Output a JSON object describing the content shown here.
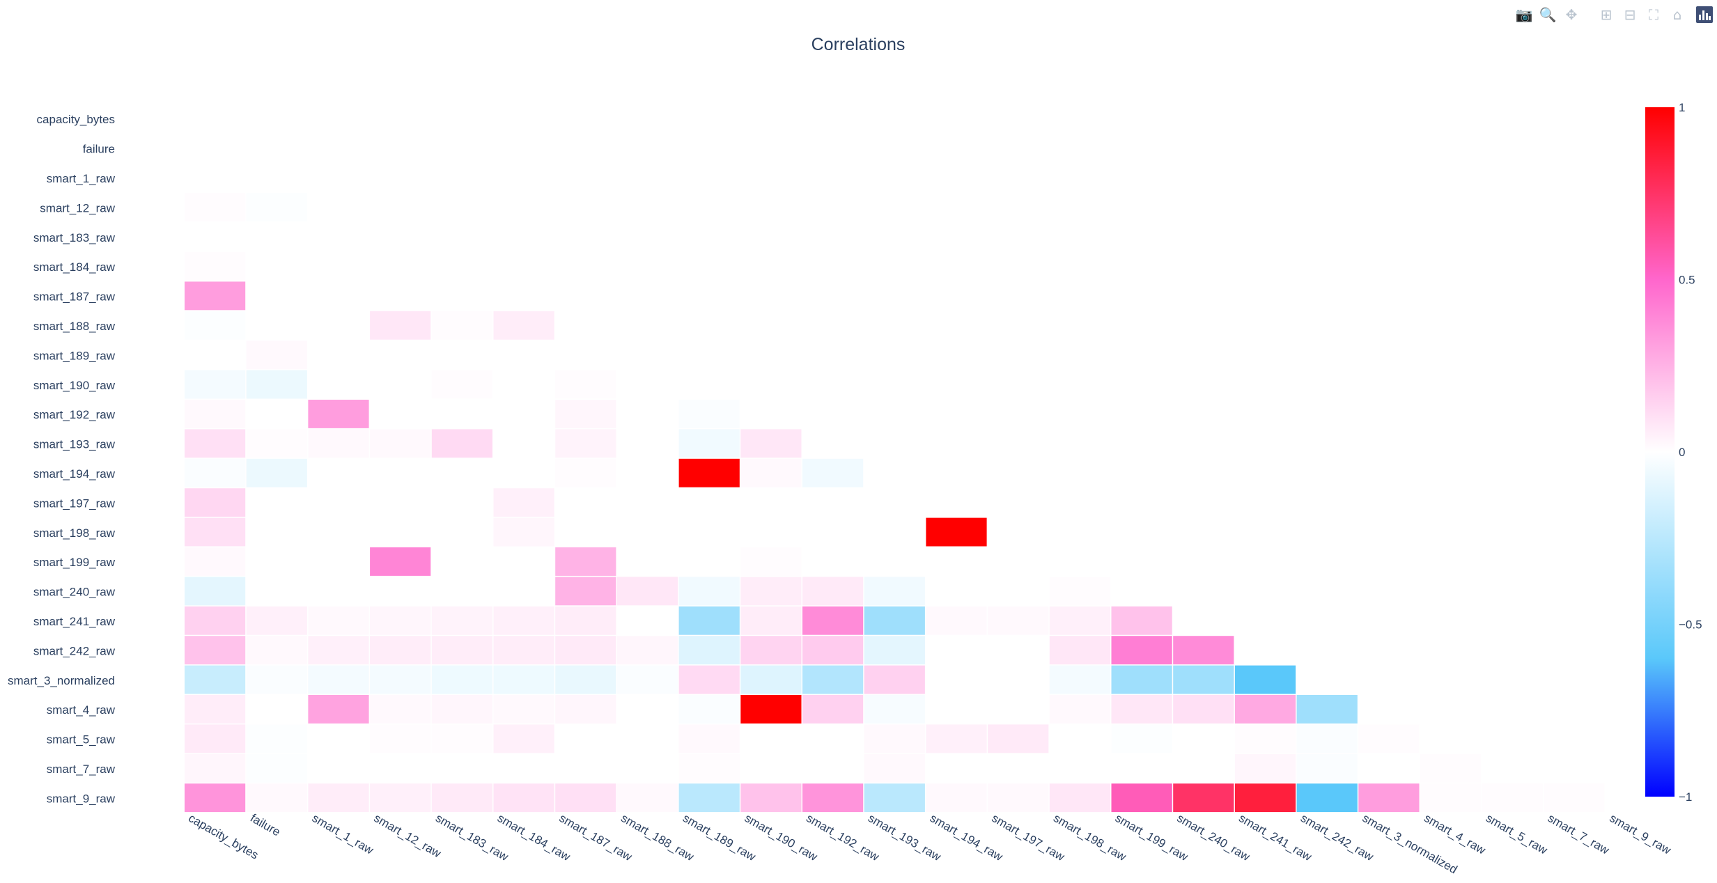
{
  "chart_data": {
    "type": "heatmap",
    "title": "Correlations",
    "variables": [
      "capacity_bytes",
      "failure",
      "smart_1_raw",
      "smart_12_raw",
      "smart_183_raw",
      "smart_184_raw",
      "smart_187_raw",
      "smart_188_raw",
      "smart_189_raw",
      "smart_190_raw",
      "smart_192_raw",
      "smart_193_raw",
      "smart_194_raw",
      "smart_197_raw",
      "smart_198_raw",
      "smart_199_raw",
      "smart_240_raw",
      "smart_241_raw",
      "smart_242_raw",
      "smart_3_normalized",
      "smart_4_raw",
      "smart_5_raw",
      "smart_7_raw",
      "smart_9_raw"
    ],
    "lower_triangle_values": [
      [],
      [
        0
      ],
      [
        0,
        0
      ],
      [
        0.01,
        -0.01,
        0
      ],
      [
        0,
        0,
        0,
        0
      ],
      [
        0.01,
        0,
        0,
        0,
        0
      ],
      [
        0.32,
        0,
        0,
        0,
        0,
        0
      ],
      [
        -0.01,
        0,
        0,
        0.08,
        0.01,
        0.06,
        0
      ],
      [
        0,
        0.02,
        0,
        0,
        0,
        0,
        0,
        0
      ],
      [
        -0.04,
        -0.07,
        0,
        0,
        0.01,
        0,
        0.01,
        0,
        0
      ],
      [
        0.02,
        0,
        0.32,
        0,
        0,
        0,
        0.03,
        0,
        -0.02
      ],
      [
        0.1,
        0.01,
        0.02,
        0.02,
        0.12,
        0,
        0.04,
        0,
        -0.05,
        0.08
      ],
      [
        -0.02,
        -0.07,
        0,
        0,
        0,
        0,
        0.01,
        0,
        1,
        0.02,
        -0.05
      ],
      [
        0.13,
        0,
        0,
        0,
        0,
        0.05,
        0,
        0,
        0,
        0,
        0,
        0
      ],
      [
        0.1,
        0,
        0,
        0,
        0,
        0.03,
        0,
        0,
        0,
        0,
        0,
        0,
        1
      ],
      [
        0.02,
        0,
        0,
        0.4,
        0,
        0,
        0.25,
        0,
        0,
        0.01,
        0,
        0,
        0,
        0
      ],
      [
        -0.1,
        0,
        0,
        0,
        0,
        0,
        0.25,
        0.08,
        -0.05,
        0.06,
        0.07,
        -0.05,
        0,
        0,
        0.01
      ],
      [
        0.15,
        0.05,
        0.02,
        0.03,
        0.04,
        0.05,
        0.06,
        0,
        -0.35,
        0.06,
        0.38,
        -0.35,
        0.02,
        0.02,
        0.05,
        0.2
      ],
      [
        0.2,
        0.02,
        0.05,
        0.06,
        0.06,
        0.06,
        0.07,
        0.03,
        -0.12,
        0.14,
        0.17,
        -0.1,
        0,
        0,
        0.08,
        0.42,
        0.38
      ],
      [
        -0.2,
        -0.02,
        -0.04,
        -0.04,
        -0.06,
        -0.06,
        -0.08,
        -0.02,
        0.12,
        -0.12,
        -0.28,
        0.15,
        0,
        0,
        -0.04,
        -0.35,
        -0.35,
        -0.6
      ],
      [
        0.06,
        0,
        0.3,
        0.02,
        0.03,
        0.02,
        0.03,
        0,
        -0.02,
        1,
        0.15,
        -0.03,
        0,
        0,
        0.02,
        0.08,
        0.1,
        0.28,
        -0.35
      ],
      [
        0.07,
        -0.01,
        0,
        0.01,
        0.01,
        0.05,
        0,
        0,
        0.02,
        0,
        0,
        0.02,
        0.05,
        0.07,
        0,
        -0.01,
        0,
        0.01,
        -0.02,
        0.01
      ],
      [
        0.03,
        -0.01,
        0,
        0,
        0,
        0,
        0,
        0,
        0.01,
        0,
        0,
        0.02,
        0,
        0,
        0,
        0,
        0,
        0.03,
        -0.02,
        0,
        0.01
      ],
      [
        0.35,
        0.02,
        0.06,
        0.05,
        0.07,
        0.09,
        0.1,
        0.02,
        -0.25,
        0.2,
        0.35,
        -0.25,
        0.02,
        0.02,
        0.08,
        0.55,
        0.75,
        0.85,
        -0.6,
        0.32,
        0.01,
        0.01,
        0.01
      ]
    ],
    "zlim": [
      -1,
      1
    ],
    "colorscale": [
      [
        0,
        "#0000ff"
      ],
      [
        0.2,
        "#5ac8fa"
      ],
      [
        0.5,
        "#ffffff"
      ],
      [
        0.75,
        "#ff66cc"
      ],
      [
        1,
        "#ff0000"
      ]
    ],
    "colorbar_ticks": [
      "1",
      "0.5",
      "0",
      "−0.5",
      "−1"
    ],
    "xaxis_tick_angle": "30 degrees clockwise",
    "grid": false,
    "colorbar_placement": "right"
  },
  "modebar": {
    "buttons": [
      {
        "name": "camera-icon",
        "glyph": "📷"
      },
      {
        "name": "zoom-icon",
        "glyph": "🔍"
      },
      {
        "name": "pan-icon",
        "glyph": "✥"
      },
      {
        "name": "zoom-in-icon",
        "glyph": "⊞"
      },
      {
        "name": "zoom-out-icon",
        "glyph": "⊟"
      },
      {
        "name": "autoscale-icon",
        "glyph": "⛶"
      },
      {
        "name": "reset-axes-icon",
        "glyph": "⌂"
      }
    ],
    "logo": "plotly-logo-icon"
  }
}
